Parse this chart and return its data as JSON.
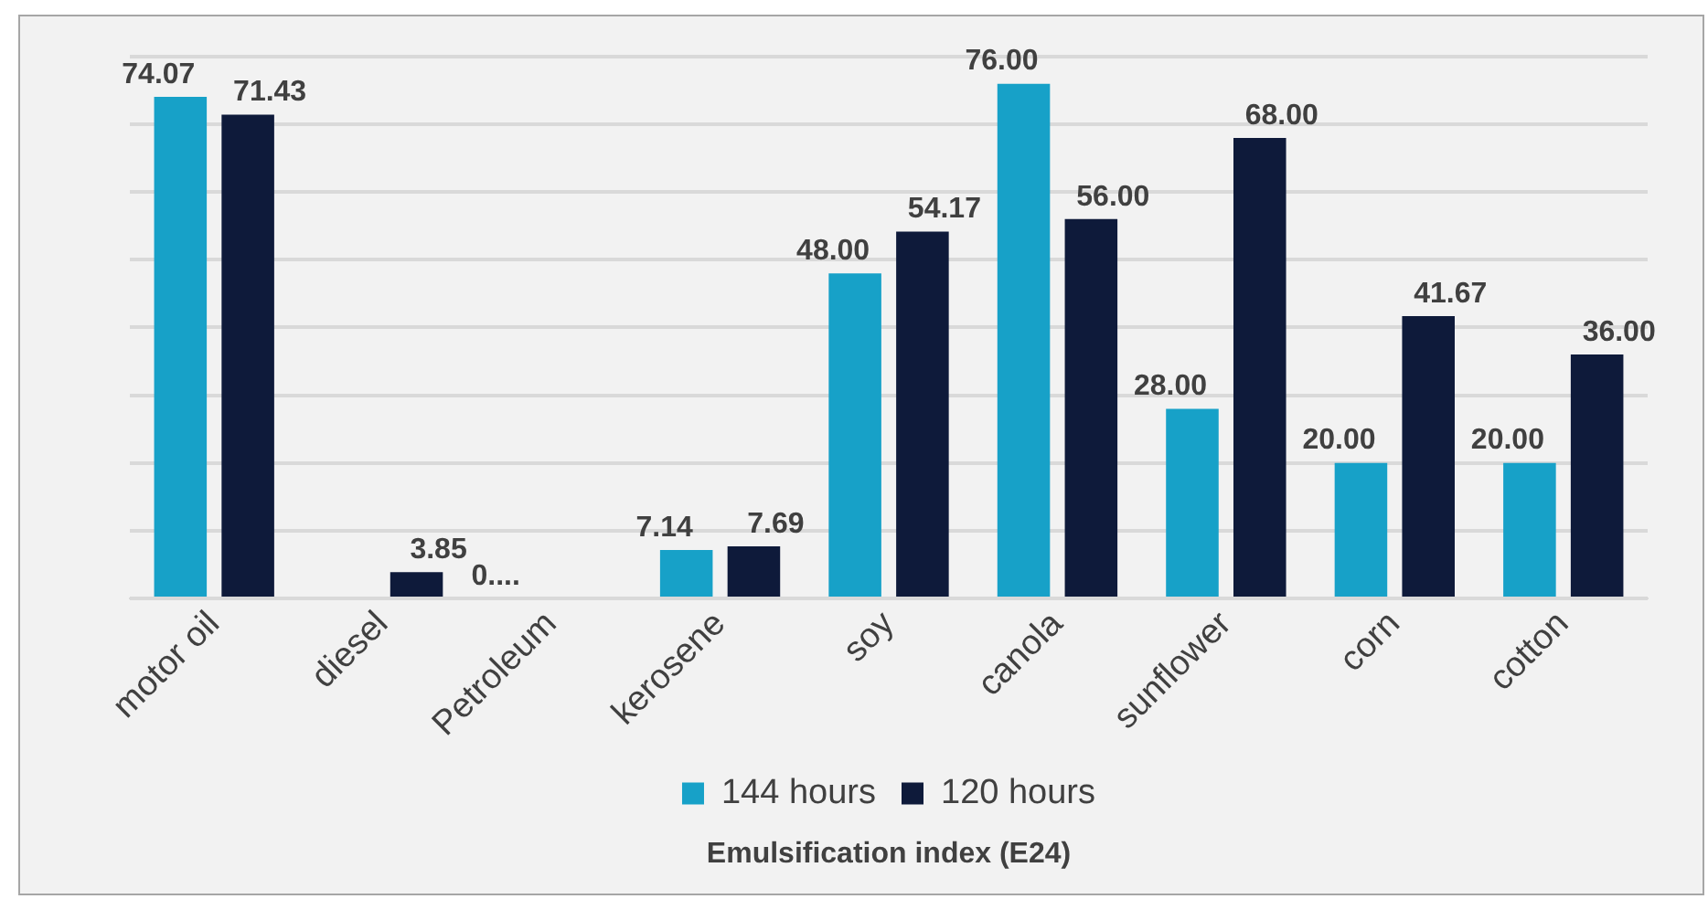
{
  "chart_data": {
    "type": "bar",
    "xlabel": "Emulsification index (E24)",
    "categories": [
      "motor oil",
      "diesel",
      "Petroleum",
      "kerosene",
      "soy",
      "canola",
      "sunflower",
      "corn",
      "cotton"
    ],
    "series": [
      {
        "name": "144 hours",
        "color": "#17a1c8",
        "values": [
          74.07,
          null,
          0,
          7.14,
          48.0,
          76.0,
          28.0,
          20.0,
          20.0
        ],
        "value_labels": [
          "74.07",
          null,
          "0....",
          "7.14",
          "48.00",
          "76.00",
          "28.00",
          "20.00",
          "20.00"
        ]
      },
      {
        "name": "120 hours",
        "color": "#0e1a3a",
        "values": [
          71.43,
          3.85,
          null,
          7.69,
          54.17,
          56.0,
          68.0,
          41.67,
          36.0
        ],
        "value_labels": [
          "71.43",
          "3.85",
          null,
          "7.69",
          "54.17",
          "56.00",
          "68.00",
          "41.67",
          "36.00"
        ]
      }
    ],
    "ylim": [
      0,
      80
    ],
    "yticks": [
      {
        "value": 0,
        "label": null
      },
      {
        "value": 10,
        "label": null
      },
      {
        "value": 20,
        "label": null
      },
      {
        "value": 30,
        "label": null
      },
      {
        "value": 40,
        "label": null
      },
      {
        "value": 50,
        "label": null
      },
      {
        "value": 60,
        "label": null
      },
      {
        "value": 70,
        "label": null
      },
      {
        "value": 80,
        "label": null
      }
    ],
    "grid": "y",
    "legend": "bottom",
    "tick_labels": "x"
  }
}
